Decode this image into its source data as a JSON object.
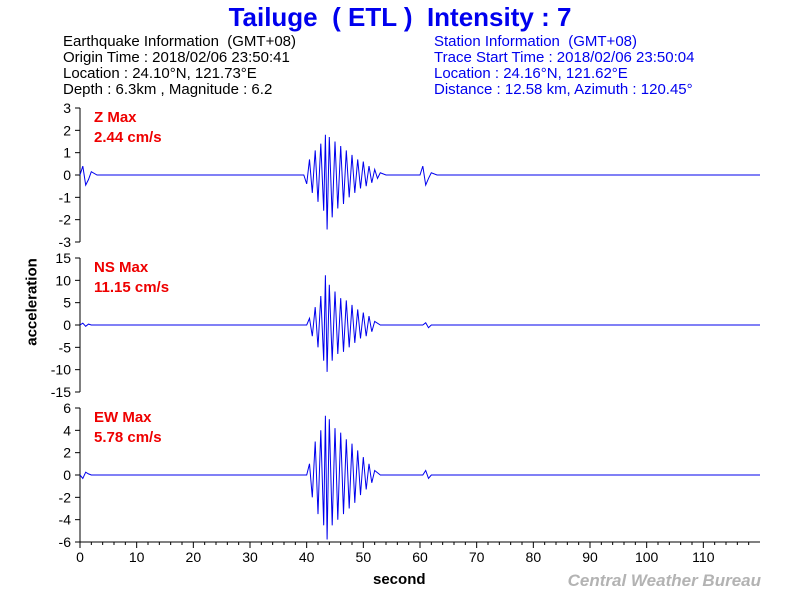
{
  "header": {
    "title": "Tailuge  ( ETL )  Intensity : 7",
    "earthquake_info": [
      "Earthquake Information  (GMT+08)",
      "Origin Time : 2018/02/06 23:50:41",
      "Location : 24.10°N, 121.73°E",
      "Depth : 6.3km , Magnitude : 6.2"
    ],
    "station_info": [
      "Station Information  (GMT+08)",
      "Trace Start Time : 2018/02/06 23:50:04",
      "Location : 24.16°N, 121.62°E",
      "Distance : 12.58 km, Azimuth : 120.45°"
    ]
  },
  "footer": {
    "credit": "Central Weather Bureau"
  },
  "colors": {
    "trace": "#0000ee",
    "max_label": "#ee0000",
    "title": "#0000ee"
  },
  "chart_data": {
    "type": "line",
    "xlabel": "second",
    "ylabel": "acceleration",
    "xlim": [
      0,
      120
    ],
    "x_ticks": [
      0,
      10,
      20,
      30,
      40,
      50,
      60,
      70,
      80,
      90,
      100,
      110
    ],
    "panels": [
      {
        "component": "Z",
        "max_label": "Z Max",
        "max_value": "2.44 cm/s",
        "ylim": [
          -3,
          3
        ],
        "y_ticks": [
          3,
          2,
          1,
          0,
          -1,
          -2,
          -3
        ],
        "peak_positive": 1.8,
        "peak_negative": -2.44,
        "series": {
          "x": [
            0,
            0.5,
            1,
            1.5,
            2,
            3,
            39.5,
            40,
            40.5,
            41,
            41.5,
            42,
            42.5,
            43,
            43.3,
            43.6,
            44,
            44.5,
            45,
            45.5,
            46,
            46.5,
            47,
            47.5,
            48,
            48.5,
            49,
            49.5,
            50,
            50.5,
            51,
            51.5,
            52,
            52.5,
            53,
            54,
            60,
            60.5,
            61,
            61.5,
            62,
            63,
            120
          ],
          "y": [
            0,
            0.4,
            -0.45,
            -0.2,
            0.15,
            0,
            0,
            -0.4,
            0.7,
            -0.8,
            1.1,
            -1.2,
            1.4,
            -1.6,
            1.8,
            -2.44,
            1.7,
            -1.9,
            1.5,
            -1.5,
            1.3,
            -1.3,
            1.1,
            -1.0,
            0.9,
            -0.8,
            0.7,
            -0.6,
            0.6,
            -0.5,
            0.4,
            -0.35,
            0.25,
            -0.15,
            0.1,
            0,
            0,
            0.4,
            -0.45,
            -0.15,
            0.1,
            0,
            0
          ]
        }
      },
      {
        "component": "NS",
        "max_label": "NS Max",
        "max_value": "11.15 cm/s",
        "ylim": [
          -15,
          15
        ],
        "y_ticks": [
          15,
          10,
          5,
          0,
          -5,
          -10,
          -15
        ],
        "peak_positive": 11.15,
        "peak_negative": -10.5,
        "series": {
          "x": [
            0,
            0.5,
            1,
            1.5,
            2,
            40,
            40.5,
            41,
            41.5,
            42,
            42.5,
            43,
            43.3,
            43.6,
            44,
            44.5,
            45,
            45.5,
            46,
            46.5,
            47,
            47.5,
            48,
            48.5,
            49,
            49.5,
            50,
            50.5,
            51,
            51.5,
            52,
            53,
            60.5,
            61,
            61.5,
            62,
            120
          ],
          "y": [
            0,
            0.4,
            -0.3,
            0.2,
            0,
            0,
            1.5,
            -2.5,
            4,
            -5,
            6.5,
            -8,
            11.15,
            -10.5,
            9,
            -8,
            7.5,
            -6.5,
            6,
            -6,
            5.5,
            -5,
            4.5,
            -4,
            3.5,
            -3,
            2.8,
            -2.5,
            2,
            -1.5,
            0.8,
            0,
            0,
            0.5,
            -0.6,
            0,
            0
          ]
        }
      },
      {
        "component": "EW",
        "max_label": "EW Max",
        "max_value": "5.78 cm/s",
        "ylim": [
          -6,
          6
        ],
        "y_ticks": [
          6,
          4,
          2,
          0,
          -2,
          -4,
          -6
        ],
        "peak_positive": 5.3,
        "peak_negative": -5.78,
        "series": {
          "x": [
            0,
            0.5,
            1,
            1.5,
            2,
            40,
            40.5,
            41,
            41.5,
            42,
            42.5,
            43,
            43.3,
            43.6,
            44,
            44.5,
            45,
            45.5,
            46,
            46.5,
            47,
            47.5,
            48,
            48.5,
            49,
            49.5,
            50,
            50.5,
            51,
            51.5,
            52,
            53,
            60.5,
            61,
            61.5,
            62,
            120
          ],
          "y": [
            0,
            -0.3,
            0.25,
            0.1,
            0,
            0,
            1,
            -2,
            3,
            -3.5,
            4,
            -4.5,
            5.3,
            -5.78,
            5,
            -4.5,
            4.2,
            -4,
            3.8,
            -3.5,
            3.2,
            -3,
            2.8,
            -2.5,
            2.2,
            -1.8,
            1.6,
            -1.3,
            1,
            -0.7,
            0.4,
            0,
            0,
            0.4,
            -0.3,
            0,
            0
          ]
        }
      }
    ]
  }
}
